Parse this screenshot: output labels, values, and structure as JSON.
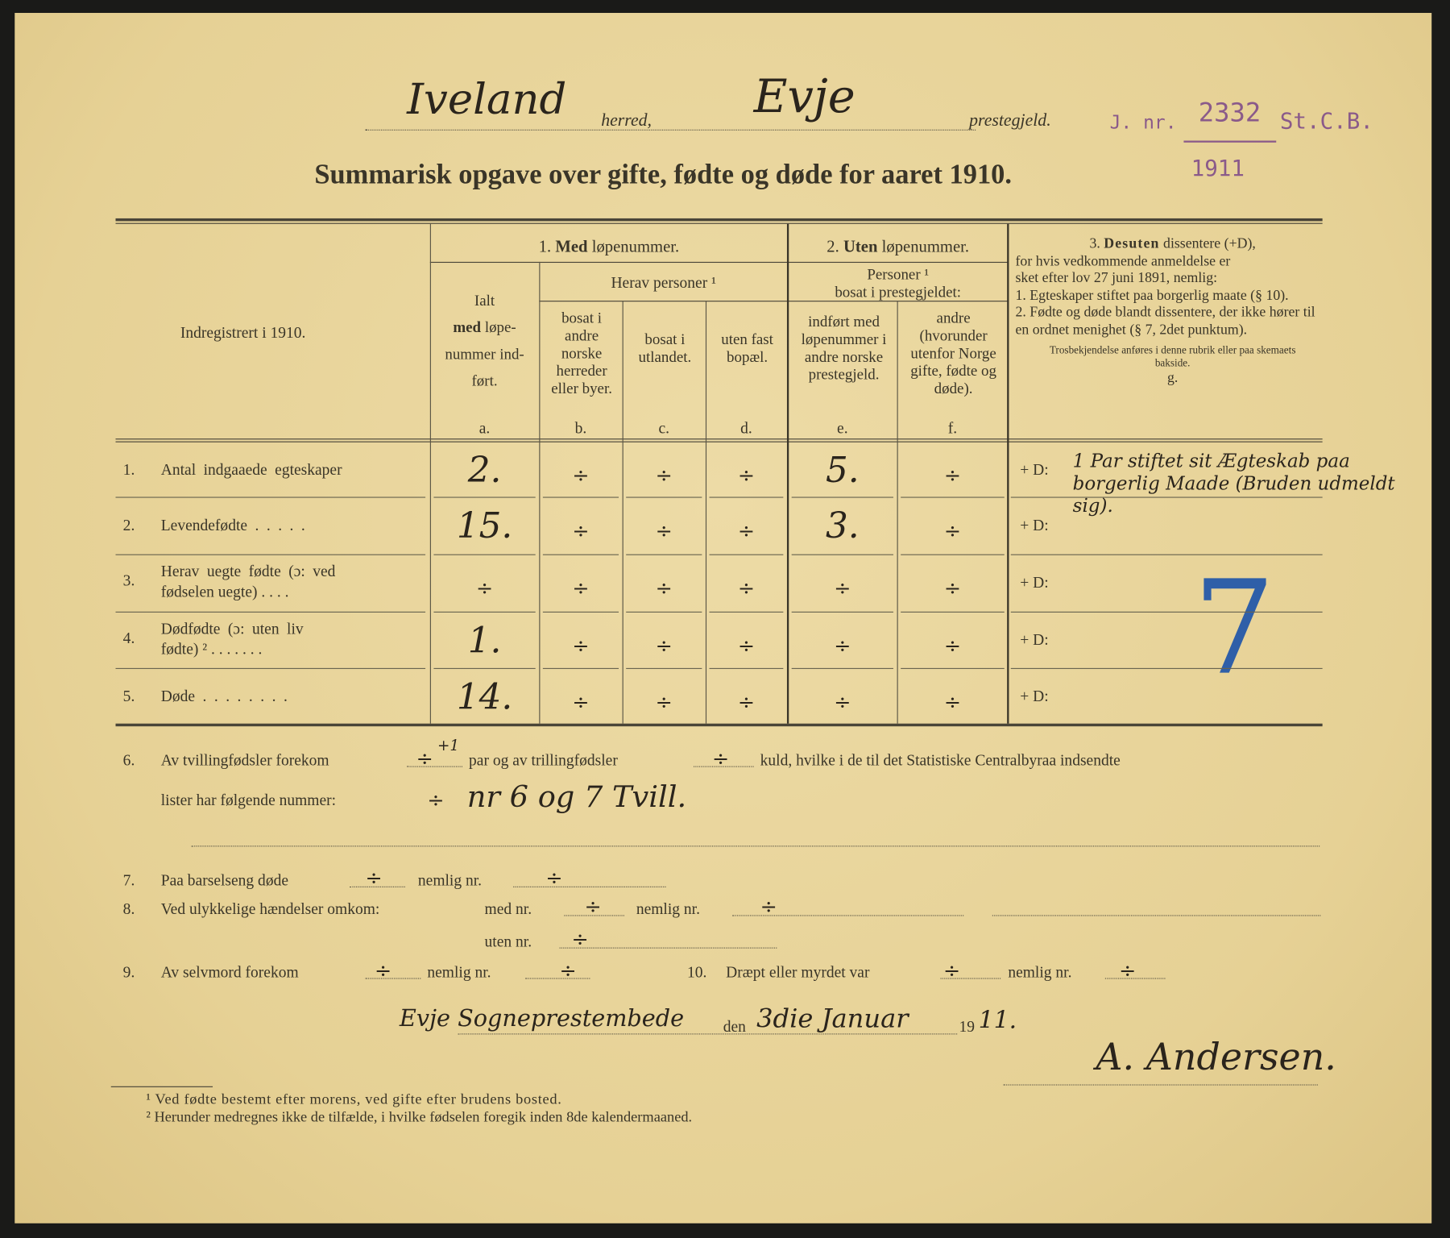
{
  "header": {
    "herred_value": "Iveland",
    "herred_label": "herred,",
    "prestegjeld_value": "Evje",
    "prestegjeld_label": "prestegjeld.",
    "stamp": {
      "prefix": "J. nr.",
      "number": "2332",
      "suffix": "St.C.B.",
      "year": "1911"
    },
    "title": "Summarisk opgave over gifte, fødte og døde for aaret 1910."
  },
  "table": {
    "row_header": "Indregistrert i 1910.",
    "group1": {
      "num": "1.",
      "bold": "Med",
      "rest": "løpenummer."
    },
    "group2": {
      "num": "2.",
      "bold": "Uten",
      "rest": "løpenummer."
    },
    "herav": "Herav personer ¹",
    "personer": "Personer ¹",
    "bosat_prestegjeld": "bosat i prestegjeldet:",
    "col_a": {
      "l1": "Ialt",
      "l2": "med",
      "l3": "løpe-",
      "l4": "nummer ind-",
      "l5": "ført.",
      "letter": "a."
    },
    "col_b": {
      "text": "bosat i andre norske herreder eller byer.",
      "letter": "b."
    },
    "col_c": {
      "text": "bosat i utlandet.",
      "letter": "c."
    },
    "col_d": {
      "text": "uten fast bopæl.",
      "letter": "d."
    },
    "col_e": {
      "text": "indført med løpenummer i andre norske prestegjeld.",
      "letter": "e."
    },
    "col_f": {
      "text": "andre (hvorunder utenfor Norge gifte, fødte og døde).",
      "letter": "f."
    },
    "col_g": {
      "title_num": "3.",
      "title_bold": "Desuten",
      "title_rest": "dissentere (+D),",
      "l2": "for hvis vedkommende anmeldelse er",
      "l3": "sket efter lov 27 juni 1891, nemlig:",
      "i1": "1.  Egteskaper stiftet paa borgerlig maate (§ 10).",
      "i2": "2.  Fødte og døde blandt dissentere, der ikke hører til en ordnet menighet (§ 7, 2det punktum).",
      "note": "Trosbekjendelse anføres i denne rubrik eller paa skemaets bakside.",
      "letter": "g.",
      "blue_mark": "7"
    },
    "rows": [
      {
        "num": "1.",
        "label": "Antal indgaaede egteskaper",
        "label2": "",
        "a": "2.",
        "b": "÷",
        "c": "÷",
        "d": "÷",
        "e": "5.",
        "f": "÷",
        "g_prefix": "+ D:",
        "g": "1 Par stiftet sit Ægteskab paa borgerlig Maade (Bruden udmeldt sig)."
      },
      {
        "num": "2.",
        "label": "Levendefødte . . . . .",
        "label2": "",
        "a": "15.",
        "b": "÷",
        "c": "÷",
        "d": "÷",
        "e": "3.",
        "f": "÷",
        "g_prefix": "+ D:",
        "g": ""
      },
      {
        "num": "3.",
        "label": "Herav uegte fødte (ɔ: ved",
        "label2": "fødselen uegte) . . . .",
        "a": "÷",
        "b": "÷",
        "c": "÷",
        "d": "÷",
        "e": "÷",
        "f": "÷",
        "g_prefix": "+ D:",
        "g": ""
      },
      {
        "num": "4.",
        "label": "Dødfødte (ɔ: uten liv",
        "label2": "fødte) ² . . . . . . .",
        "a": "1.",
        "b": "÷",
        "c": "÷",
        "d": "÷",
        "e": "÷",
        "f": "÷",
        "g_prefix": "+ D:",
        "g": ""
      },
      {
        "num": "5.",
        "label": "Døde . . . . . . . .",
        "label2": "",
        "a": "14.",
        "b": "÷",
        "c": "÷",
        "d": "÷",
        "e": "÷",
        "f": "÷",
        "g_prefix": "+ D:",
        "g": ""
      }
    ]
  },
  "lines": {
    "l6": {
      "num": "6.",
      "a": "Av tvillingfødsler forekom",
      "v1": "÷",
      "v1_extra": "+1",
      "b": "par og av trillingfødsler",
      "v2": "÷",
      "c": "kuld, hvilke i de til det Statistiske Centralbyraa indsendte",
      "d": "lister har følgende nummer:",
      "v3": "÷",
      "v4": "nr 6 og 7 Tvill."
    },
    "l7": {
      "num": "7.",
      "a": "Paa barselseng døde",
      "v1": "÷",
      "b": "nemlig nr.",
      "v2": "÷"
    },
    "l8": {
      "num": "8.",
      "a": "Ved ulykkelige hændelser omkom:",
      "b": "med nr.",
      "v1": "÷",
      "c": "nemlig nr.",
      "v2": "÷",
      "d": "uten nr.",
      "v3": "÷"
    },
    "l9": {
      "num": "9.",
      "a": "Av selvmord forekom",
      "v1": "÷",
      "b": "nemlig nr.",
      "v2": "÷"
    },
    "l10": {
      "num": "10.",
      "a": "Dræpt eller myrdet var",
      "v1": "÷",
      "b": "nemlig nr.",
      "v2": "÷"
    }
  },
  "signature": {
    "place": "Evje Sogneprestembede",
    "den": "den",
    "date": "3die Januar",
    "year_prefix": "19",
    "year_suffix": "11.",
    "signer": "A. Andersen."
  },
  "footnotes": {
    "f1": "¹ Ved fødte bestemt efter morens, ved gifte efter brudens bosted.",
    "f2": "² Herunder medregnes ikke de tilfælde, i hvilke fødselen foregik inden 8de kalendermaaned."
  },
  "colors": {
    "paper": "#e9d69e",
    "ink": "#3a3528",
    "stamp": "#8a5a8a",
    "blue_pencil": "#2f5fa8"
  }
}
